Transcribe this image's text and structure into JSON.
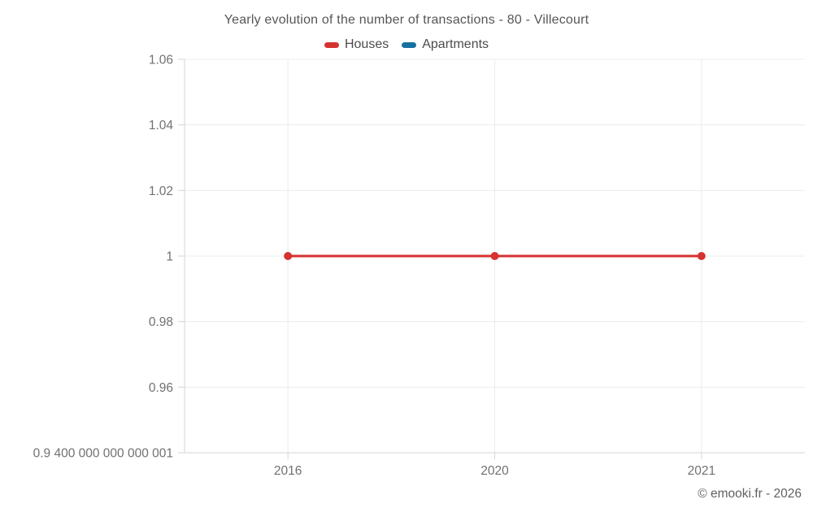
{
  "watermark": "© emooki.fr - 2026",
  "colors": {
    "houses": "#d53230",
    "apartments": "#17719f",
    "grid": "#ececec",
    "axis": "#d6d6d6",
    "tick_label": "#717171",
    "title": "#565656"
  },
  "chart_data": {
    "type": "line",
    "title": "Yearly evolution of the number of transactions - 80 - Villecourt",
    "categories": [
      "2016",
      "2020",
      "2021"
    ],
    "series": [
      {
        "name": "Houses",
        "color": "#d53230",
        "values": [
          1,
          1,
          1
        ]
      },
      {
        "name": "Apartments",
        "color": "#17719f",
        "values": []
      }
    ],
    "xlabel": "",
    "ylabel": "",
    "ylim": [
      0.94,
      1.06
    ],
    "yticks": [
      {
        "value": 0.94,
        "label": "0.9 400 000 000 000 001"
      },
      {
        "value": 0.96,
        "label": "0.96"
      },
      {
        "value": 0.98,
        "label": "0.98"
      },
      {
        "value": 1,
        "label": "1"
      },
      {
        "value": 1.02,
        "label": "1.02"
      },
      {
        "value": 1.04,
        "label": "1.04"
      },
      {
        "value": 1.06,
        "label": "1.06"
      }
    ],
    "grid": true,
    "legend_position": "top",
    "marker": "circle"
  }
}
